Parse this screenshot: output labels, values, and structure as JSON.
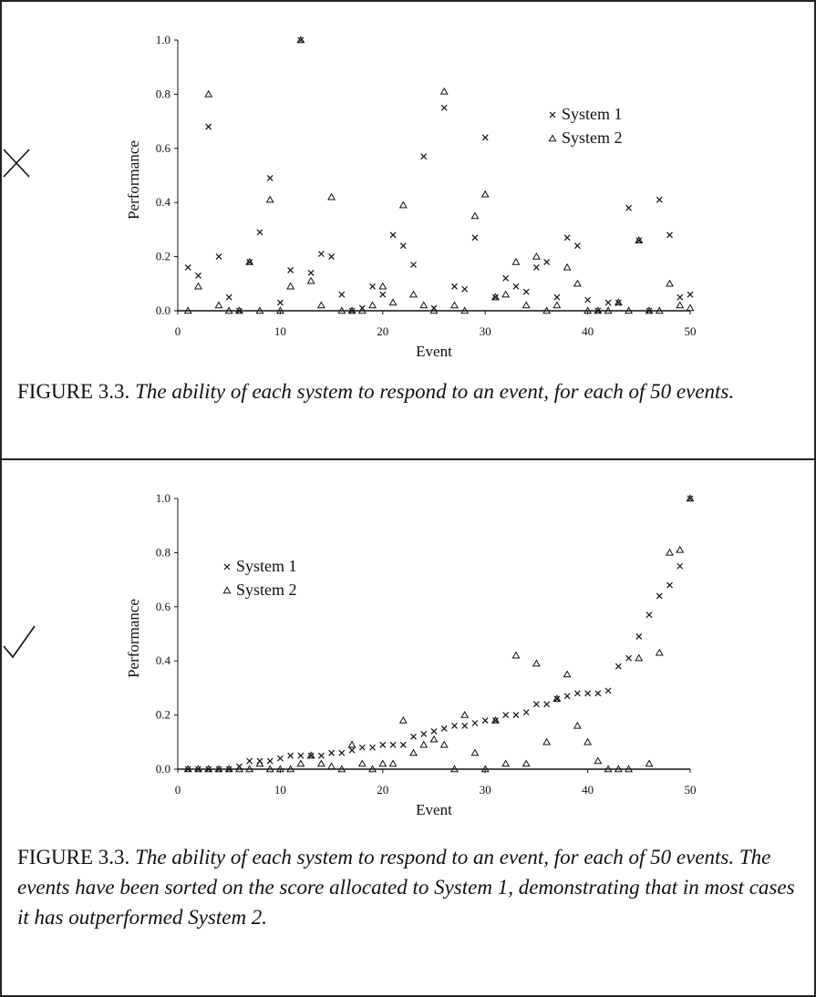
{
  "panels": [
    {
      "mark": "cross",
      "caption_prefix": "FIGURE 3.3.",
      "caption_text": "The ability of each system to respond to an event, for each of 50 events.",
      "chart_data": {
        "type": "scatter",
        "xlabel": "Event",
        "ylabel": "Performance",
        "xlim": [
          0,
          50
        ],
        "ylim": [
          0,
          1.0
        ],
        "xticks": [
          "0",
          "10",
          "20",
          "30",
          "40",
          "50"
        ],
        "yticks": [
          "0.0",
          "0.2",
          "0.4",
          "0.6",
          "0.8",
          "1.0"
        ],
        "legend_position": "top-right",
        "series": [
          {
            "name": "System 1",
            "marker": "x",
            "x": [
              1,
              2,
              3,
              4,
              5,
              6,
              7,
              8,
              9,
              10,
              11,
              12,
              13,
              14,
              15,
              16,
              17,
              18,
              19,
              20,
              21,
              22,
              23,
              24,
              25,
              26,
              27,
              28,
              29,
              30,
              31,
              32,
              33,
              34,
              35,
              36,
              37,
              38,
              39,
              40,
              41,
              42,
              43,
              44,
              45,
              46,
              47,
              48,
              49,
              50
            ],
            "values": [
              0.16,
              0.13,
              0.68,
              0.2,
              0.05,
              0.0,
              0.18,
              0.29,
              0.49,
              0.03,
              0.15,
              1.0,
              0.14,
              0.21,
              0.2,
              0.06,
              0.0,
              0.01,
              0.09,
              0.06,
              0.28,
              0.24,
              0.17,
              0.57,
              0.01,
              0.75,
              0.09,
              0.08,
              0.27,
              0.64,
              0.05,
              0.12,
              0.09,
              0.07,
              0.16,
              0.18,
              0.05,
              0.27,
              0.24,
              0.04,
              0.0,
              0.03,
              0.03,
              0.38,
              0.26,
              0.0,
              0.41,
              0.28,
              0.05,
              0.06
            ]
          },
          {
            "name": "System 2",
            "marker": "triangle",
            "x": [
              1,
              2,
              3,
              4,
              5,
              6,
              7,
              8,
              9,
              10,
              11,
              12,
              13,
              14,
              15,
              16,
              17,
              18,
              19,
              20,
              21,
              22,
              23,
              24,
              25,
              26,
              27,
              28,
              29,
              30,
              31,
              32,
              33,
              34,
              35,
              36,
              37,
              38,
              39,
              40,
              41,
              42,
              43,
              44,
              45,
              46,
              47,
              48,
              49,
              50
            ],
            "values": [
              0.0,
              0.09,
              0.8,
              0.02,
              0.0,
              0.0,
              0.18,
              0.0,
              0.41,
              0.0,
              0.09,
              1.0,
              0.11,
              0.02,
              0.42,
              0.0,
              0.0,
              0.0,
              0.02,
              0.09,
              0.03,
              0.39,
              0.06,
              0.02,
              0.0,
              0.81,
              0.02,
              0.0,
              0.35,
              0.43,
              0.05,
              0.06,
              0.18,
              0.02,
              0.2,
              0.0,
              0.02,
              0.16,
              0.1,
              0.0,
              0.0,
              0.0,
              0.03,
              0.0,
              0.26,
              0.0,
              0.0,
              0.1,
              0.02,
              0.01
            ]
          }
        ]
      }
    },
    {
      "mark": "check",
      "caption_prefix": "FIGURE 3.3.",
      "caption_text": "The ability of each system to respond to an event, for each of 50 events. The events have been sorted on the score allocated to System 1, demonstrating that in most cases it has outperformed System 2.",
      "chart_data": {
        "type": "scatter",
        "xlabel": "Event",
        "ylabel": "Performance",
        "xlim": [
          0,
          50
        ],
        "ylim": [
          0,
          1.0
        ],
        "xticks": [
          "0",
          "10",
          "20",
          "30",
          "40",
          "50"
        ],
        "yticks": [
          "0.0",
          "0.2",
          "0.4",
          "0.6",
          "0.8",
          "1.0"
        ],
        "legend_position": "top-left",
        "series": [
          {
            "name": "System 1",
            "marker": "x",
            "x": [
              1,
              2,
              3,
              4,
              5,
              6,
              7,
              8,
              9,
              10,
              11,
              12,
              13,
              14,
              15,
              16,
              17,
              18,
              19,
              20,
              21,
              22,
              23,
              24,
              25,
              26,
              27,
              28,
              29,
              30,
              31,
              32,
              33,
              34,
              35,
              36,
              37,
              38,
              39,
              40,
              41,
              42,
              43,
              44,
              45,
              46,
              47,
              48,
              49,
              50
            ],
            "values": [
              0.0,
              0.0,
              0.0,
              0.0,
              0.0,
              0.01,
              0.03,
              0.03,
              0.03,
              0.04,
              0.05,
              0.05,
              0.05,
              0.05,
              0.06,
              0.06,
              0.07,
              0.08,
              0.08,
              0.09,
              0.09,
              0.09,
              0.12,
              0.13,
              0.14,
              0.15,
              0.16,
              0.16,
              0.17,
              0.18,
              0.18,
              0.2,
              0.2,
              0.21,
              0.24,
              0.24,
              0.26,
              0.27,
              0.28,
              0.28,
              0.28,
              0.29,
              0.38,
              0.41,
              0.49,
              0.57,
              0.64,
              0.68,
              0.75,
              1.0
            ]
          },
          {
            "name": "System 2",
            "marker": "triangle",
            "x": [
              1,
              2,
              3,
              4,
              5,
              6,
              7,
              8,
              9,
              10,
              11,
              12,
              13,
              14,
              15,
              16,
              17,
              18,
              19,
              20,
              21,
              22,
              23,
              24,
              25,
              26,
              27,
              28,
              29,
              30,
              31,
              32,
              33,
              34,
              35,
              36,
              37,
              38,
              39,
              40,
              41,
              42,
              43,
              44,
              45,
              46,
              47,
              48,
              49,
              50
            ],
            "values": [
              0.0,
              0.0,
              0.0,
              0.0,
              0.0,
              0.0,
              0.0,
              0.02,
              0.0,
              0.0,
              0.0,
              0.02,
              0.05,
              0.02,
              0.01,
              0.0,
              0.09,
              0.02,
              0.0,
              0.02,
              0.02,
              0.18,
              0.06,
              0.09,
              0.11,
              0.09,
              0.0,
              0.2,
              0.06,
              0.0,
              0.18,
              0.02,
              0.42,
              0.02,
              0.39,
              0.1,
              0.26,
              0.35,
              0.16,
              0.1,
              0.03,
              0.0,
              0.0,
              0.0,
              0.41,
              0.02,
              0.43,
              0.8,
              0.81,
              1.0
            ]
          }
        ]
      }
    }
  ]
}
